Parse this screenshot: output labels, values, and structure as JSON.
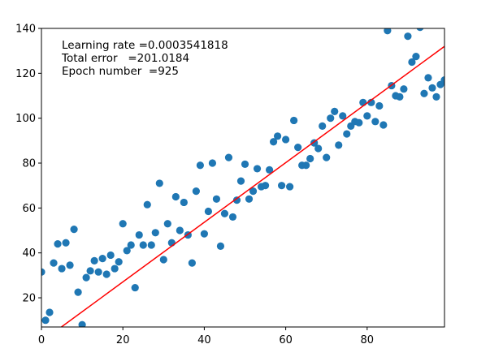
{
  "chart_data": {
    "type": "scatter",
    "title": "",
    "xlabel": "",
    "ylabel": "",
    "xlim": [
      0,
      99
    ],
    "ylim": [
      7,
      140
    ],
    "grid": false,
    "xticks": [
      0,
      20,
      40,
      60,
      80
    ],
    "yticks": [
      20,
      40,
      60,
      80,
      100,
      120,
      140
    ],
    "colors": {
      "points": "#1f77b4",
      "fit_line": "#ff0000",
      "axes": "#000000"
    },
    "annotations": [
      "Learning rate =0.0003541818",
      "Total error   =201.0184",
      "Epoch number  =925"
    ],
    "fit_line": {
      "x": [
        0,
        99
      ],
      "y": [
        0.5,
        132
      ]
    },
    "points": [
      {
        "x": 0,
        "y": 31.5
      },
      {
        "x": 1,
        "y": 10
      },
      {
        "x": 2,
        "y": 13.5
      },
      {
        "x": 3,
        "y": 35.5
      },
      {
        "x": 4,
        "y": 44
      },
      {
        "x": 5,
        "y": 33
      },
      {
        "x": 6,
        "y": 44.5
      },
      {
        "x": 7,
        "y": 34.5
      },
      {
        "x": 8,
        "y": 50.5
      },
      {
        "x": 9,
        "y": 22.5
      },
      {
        "x": 10,
        "y": 8
      },
      {
        "x": 11,
        "y": 29
      },
      {
        "x": 12,
        "y": 32
      },
      {
        "x": 13,
        "y": 36.5
      },
      {
        "x": 14,
        "y": 31.5
      },
      {
        "x": 15,
        "y": 37.5
      },
      {
        "x": 16,
        "y": 30.5
      },
      {
        "x": 17,
        "y": 39
      },
      {
        "x": 18,
        "y": 33
      },
      {
        "x": 19,
        "y": 36
      },
      {
        "x": 20,
        "y": 53
      },
      {
        "x": 21,
        "y": 41
      },
      {
        "x": 22,
        "y": 43.5
      },
      {
        "x": 23,
        "y": 24.5
      },
      {
        "x": 24,
        "y": 48
      },
      {
        "x": 25,
        "y": 43.5
      },
      {
        "x": 26,
        "y": 61.5
      },
      {
        "x": 27,
        "y": 43.5
      },
      {
        "x": 28,
        "y": 49
      },
      {
        "x": 29,
        "y": 71
      },
      {
        "x": 30,
        "y": 37
      },
      {
        "x": 31,
        "y": 53
      },
      {
        "x": 32,
        "y": 44.5
      },
      {
        "x": 33,
        "y": 65
      },
      {
        "x": 34,
        "y": 50
      },
      {
        "x": 35,
        "y": 62.5
      },
      {
        "x": 36,
        "y": 48
      },
      {
        "x": 37,
        "y": 35.5
      },
      {
        "x": 38,
        "y": 67.5
      },
      {
        "x": 39,
        "y": 79
      },
      {
        "x": 40,
        "y": 48.5
      },
      {
        "x": 41,
        "y": 58.5
      },
      {
        "x": 42,
        "y": 80
      },
      {
        "x": 43,
        "y": 64
      },
      {
        "x": 44,
        "y": 43
      },
      {
        "x": 45,
        "y": 57.5
      },
      {
        "x": 46,
        "y": 82.5
      },
      {
        "x": 47,
        "y": 56
      },
      {
        "x": 48,
        "y": 63.5
      },
      {
        "x": 49,
        "y": 72
      },
      {
        "x": 50,
        "y": 79.5
      },
      {
        "x": 51,
        "y": 64
      },
      {
        "x": 52,
        "y": 67.5
      },
      {
        "x": 53,
        "y": 77.5
      },
      {
        "x": 54,
        "y": 69.5
      },
      {
        "x": 55,
        "y": 70
      },
      {
        "x": 56,
        "y": 77
      },
      {
        "x": 57,
        "y": 89.5
      },
      {
        "x": 58,
        "y": 92
      },
      {
        "x": 59,
        "y": 70
      },
      {
        "x": 60,
        "y": 90.5
      },
      {
        "x": 61,
        "y": 69.5
      },
      {
        "x": 62,
        "y": 99
      },
      {
        "x": 63,
        "y": 87
      },
      {
        "x": 64,
        "y": 79
      },
      {
        "x": 65,
        "y": 79
      },
      {
        "x": 66,
        "y": 82
      },
      {
        "x": 67,
        "y": 89
      },
      {
        "x": 68,
        "y": 86.5
      },
      {
        "x": 69,
        "y": 96.5
      },
      {
        "x": 70,
        "y": 82.5
      },
      {
        "x": 71,
        "y": 100
      },
      {
        "x": 72,
        "y": 103
      },
      {
        "x": 73,
        "y": 88
      },
      {
        "x": 74,
        "y": 101
      },
      {
        "x": 75,
        "y": 93
      },
      {
        "x": 76,
        "y": 96.5
      },
      {
        "x": 77,
        "y": 98.5
      },
      {
        "x": 78,
        "y": 98
      },
      {
        "x": 79,
        "y": 107
      },
      {
        "x": 80,
        "y": 101
      },
      {
        "x": 81,
        "y": 107
      },
      {
        "x": 82,
        "y": 98.5
      },
      {
        "x": 83,
        "y": 105.5
      },
      {
        "x": 84,
        "y": 97
      },
      {
        "x": 85,
        "y": 139
      },
      {
        "x": 86,
        "y": 114.5
      },
      {
        "x": 87,
        "y": 110
      },
      {
        "x": 88,
        "y": 109.5
      },
      {
        "x": 89,
        "y": 113
      },
      {
        "x": 90,
        "y": 136.5
      },
      {
        "x": 91,
        "y": 125
      },
      {
        "x": 92,
        "y": 127.5
      },
      {
        "x": 93,
        "y": 140.5
      },
      {
        "x": 94,
        "y": 111
      },
      {
        "x": 95,
        "y": 118
      },
      {
        "x": 96,
        "y": 113.5
      },
      {
        "x": 97,
        "y": 109.5
      },
      {
        "x": 98,
        "y": 115
      },
      {
        "x": 99,
        "y": 117
      }
    ]
  }
}
